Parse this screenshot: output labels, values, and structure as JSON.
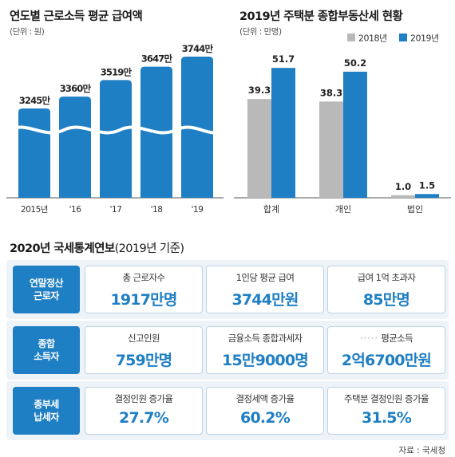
{
  "colors": {
    "accent": "#1f7fc4",
    "gray": "#b9b9b9",
    "panel": "#eef3f8"
  },
  "chart_left": {
    "title": "연도별 근로소득 평균 급여액",
    "unit_label": "(단위 : 원)"
  },
  "chart_right": {
    "title": "2019년 주택분 종합부동산세 현황",
    "unit_label": "(단위 : 만명)"
  },
  "chart_data": [
    {
      "type": "bar",
      "title": "연도별 근로소득 평균 급여액",
      "unit": "(단위 : 원)",
      "categories": [
        "2015년",
        "'16",
        "'17",
        "'18",
        "'19"
      ],
      "values": [
        3245,
        3360,
        3519,
        3647,
        3744
      ],
      "data_labels": [
        "3245만",
        "3360만",
        "3519만",
        "3647만",
        "3744만"
      ],
      "axis_break": true
    },
    {
      "type": "bar",
      "title": "2019년 주택분 종합부동산세 현황",
      "unit": "(단위 : 만명)",
      "categories": [
        "합계",
        "개인",
        "법인"
      ],
      "series": [
        {
          "name": "2018년",
          "values": [
            39.3,
            38.3,
            1.0
          ],
          "color": "#b9b9b9"
        },
        {
          "name": "2019년",
          "values": [
            51.7,
            50.2,
            1.5
          ],
          "color": "#1f7fc4"
        }
      ],
      "legend": "top-right",
      "ylim": [
        0,
        60
      ]
    }
  ],
  "yearbook": {
    "title_bold": "2020년 국세통계연보",
    "title_light": "(2019년 기준)",
    "rows": [
      {
        "label_line1": "연말정산",
        "label_line2": "근로자",
        "cells": [
          {
            "label": "총 근로자수",
            "value": "1917만명"
          },
          {
            "label": "1인당 평균 급여",
            "value": "3744만원"
          },
          {
            "label": "급여 1억 초과자",
            "value": "85만명"
          }
        ]
      },
      {
        "label_line1": "종합",
        "label_line2": "소득자",
        "cells": [
          {
            "label": "신고인원",
            "value": "759만명"
          },
          {
            "label": "금융소득 종합과세자",
            "value": "15만9000명"
          },
          {
            "label": "평균소득",
            "value": "2억6700만원",
            "prefix": "·····"
          }
        ]
      },
      {
        "label_line1": "종부세",
        "label_line2": "납세자",
        "cells": [
          {
            "label": "결정인원 증가율",
            "value": "27.7%"
          },
          {
            "label": "결정세액 증가율",
            "value": "60.2%"
          },
          {
            "label": "주택분 결정인원 증가율",
            "value": "31.5%"
          }
        ]
      }
    ]
  },
  "source": "자료 : 국세청"
}
